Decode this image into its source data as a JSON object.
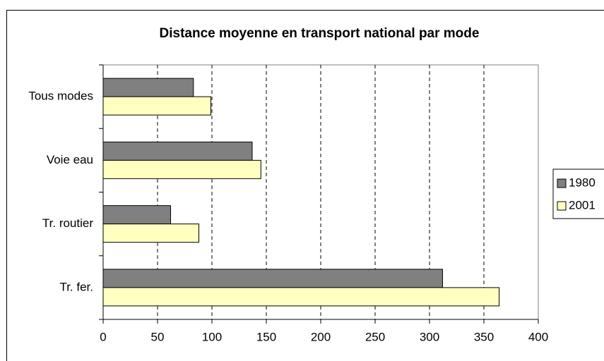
{
  "chart_data": {
    "type": "hbar",
    "title": "Distance moyenne en transport national par mode",
    "categories": [
      "Tous modes",
      "Voie eau",
      "Tr. routier",
      "Tr. fer."
    ],
    "series": [
      {
        "name": "1980",
        "color": "#808080",
        "values": [
          83,
          137,
          62,
          312
        ]
      },
      {
        "name": "2001",
        "color": "#ffffc0",
        "values": [
          99,
          145,
          88,
          364
        ]
      }
    ],
    "xlim": [
      0,
      400
    ],
    "xticks": [
      0,
      50,
      100,
      150,
      200,
      250,
      300,
      350,
      400
    ],
    "grid": true,
    "legend": "right"
  }
}
